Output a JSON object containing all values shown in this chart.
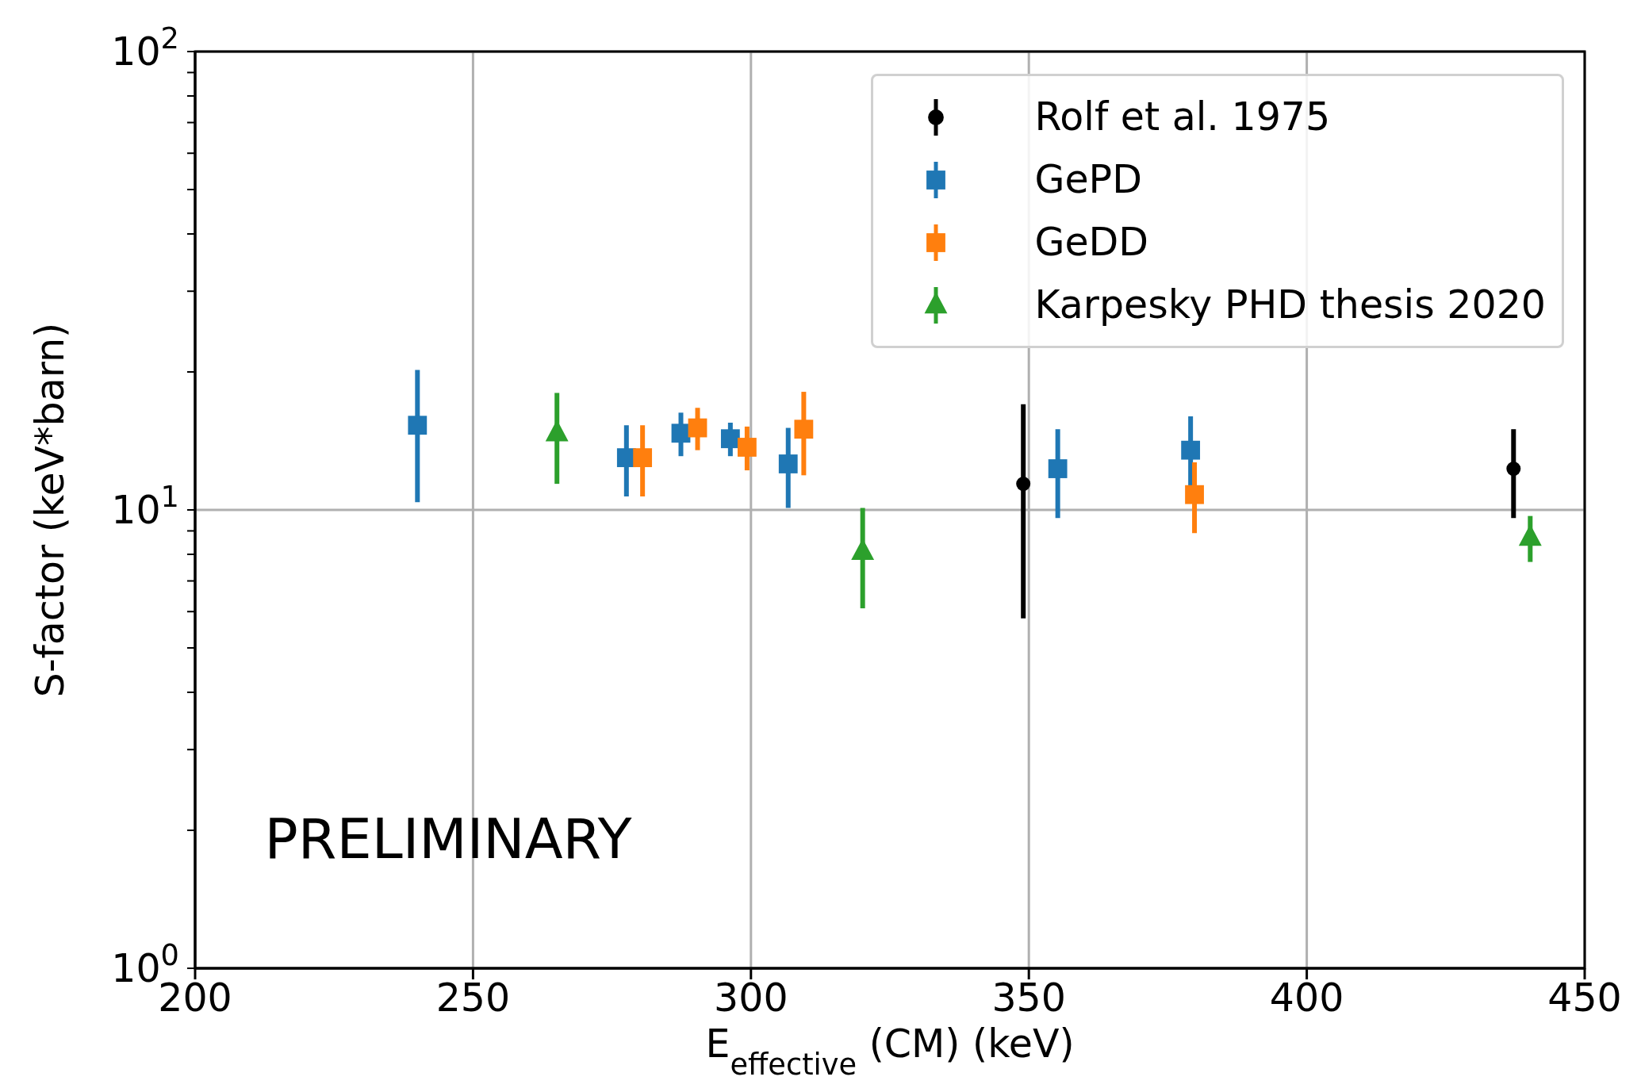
{
  "chart_data": {
    "type": "scatter",
    "xlabel": "E$_{effective}$ (CM) (keV)",
    "ylabel": "S-factor (keV*barn)",
    "log": "y",
    "grid": true,
    "legend": "top right",
    "xlim": [
      200,
      450
    ],
    "xticks": [
      200,
      250,
      300,
      350,
      400,
      450
    ],
    "ylim": [
      1,
      100
    ],
    "yticks": [
      {
        "value": 1,
        "label": "10$^{0}$"
      },
      {
        "value": 2,
        "label": null
      },
      {
        "value": 3,
        "label": null
      },
      {
        "value": 4,
        "label": null
      },
      {
        "value": 5,
        "label": null
      },
      {
        "value": 6,
        "label": null
      },
      {
        "value": 7,
        "label": null
      },
      {
        "value": 8,
        "label": null
      },
      {
        "value": 9,
        "label": null
      },
      {
        "value": 10,
        "label": "10$^{1}$"
      },
      {
        "value": 20,
        "label": null
      },
      {
        "value": 30,
        "label": null
      },
      {
        "value": 40,
        "label": null
      },
      {
        "value": 50,
        "label": null
      },
      {
        "value": 60,
        "label": null
      },
      {
        "value": 70,
        "label": null
      },
      {
        "value": 80,
        "label": null
      },
      {
        "value": 90,
        "label": null
      },
      {
        "value": 100,
        "label": "10$^{2}$"
      }
    ],
    "annotations": [
      "PRELIMINARY"
    ],
    "series": [
      {
        "name": "Rolf et al. 1975",
        "color": "#000000",
        "marker": "circle",
        "x": [
          349.0,
          437.2
        ],
        "values": [
          11.4,
          12.3
        ],
        "errors": [
          5.6,
          2.7
        ]
      },
      {
        "name": "GePD",
        "color": "#1f77b4",
        "marker": "square",
        "x": [
          240.0,
          277.6,
          287.4,
          296.3,
          306.7,
          355.2,
          379.1
        ],
        "values": [
          15.3,
          13.0,
          14.7,
          14.3,
          12.6,
          12.3,
          13.5
        ],
        "errors": [
          4.9,
          2.3,
          1.6,
          1.2,
          2.5,
          2.7,
          2.5
        ]
      },
      {
        "name": "GeDD",
        "color": "#ff7f0e",
        "marker": "square",
        "x": [
          280.5,
          290.4,
          299.3,
          309.5,
          379.8
        ],
        "values": [
          13.0,
          15.1,
          13.7,
          15.0,
          10.8
        ],
        "errors": [
          2.3,
          1.6,
          1.5,
          3.1,
          1.9
        ]
      },
      {
        "name": "Karpesky PHD thesis 2020",
        "color": "#2ca02c",
        "marker": "triangle",
        "x": [
          265.1,
          320.1,
          440.2
        ],
        "values": [
          14.7,
          8.1,
          8.7
        ],
        "errors": [
          3.3,
          2.0,
          1.0
        ]
      }
    ]
  }
}
